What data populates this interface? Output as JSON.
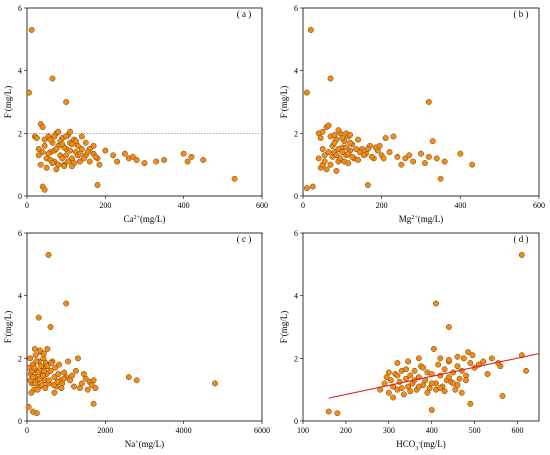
{
  "colors": {
    "point_fill": "#f28c16",
    "point_stroke": "#6b3a00",
    "fit_line": "#e01b1b",
    "ref_line": "#777777"
  },
  "chart_data": [
    {
      "panel": "(a)",
      "type": "scatter",
      "xlabel_parts": [
        "Ca",
        "2+",
        "(mg/L)"
      ],
      "ylabel_parts": [
        "F",
        "-",
        "(mg/L)"
      ],
      "xlim": [
        0,
        600
      ],
      "ylim": [
        0,
        6
      ],
      "xticks": [
        "0",
        "200",
        "400",
        "600"
      ],
      "yticks": [
        "0",
        "2",
        "4",
        "6"
      ],
      "reference_line_y": 2,
      "points": [
        [
          12,
          5.3
        ],
        [
          5,
          3.3
        ],
        [
          65,
          3.75
        ],
        [
          100,
          3.0
        ],
        [
          420,
          1.25
        ],
        [
          530,
          0.55
        ],
        [
          180,
          0.35
        ],
        [
          40,
          0.3
        ],
        [
          45,
          0.2
        ],
        [
          20,
          1.9
        ],
        [
          25,
          1.85
        ],
        [
          30,
          1.5
        ],
        [
          35,
          2.3
        ],
        [
          40,
          2.2
        ],
        [
          45,
          1.8
        ],
        [
          50,
          1.2
        ],
        [
          55,
          1.9
        ],
        [
          60,
          1.4
        ],
        [
          65,
          1.7
        ],
        [
          70,
          1.1
        ],
        [
          75,
          2.0
        ],
        [
          80,
          1.6
        ],
        [
          85,
          1.3
        ],
        [
          90,
          1.85
        ],
        [
          95,
          1.0
        ],
        [
          100,
          1.5
        ],
        [
          105,
          1.95
        ],
        [
          110,
          1.7
        ],
        [
          115,
          1.2
        ],
        [
          120,
          1.8
        ],
        [
          125,
          1.4
        ],
        [
          130,
          1.6
        ],
        [
          135,
          1.1
        ],
        [
          140,
          1.9
        ],
        [
          150,
          1.3
        ],
        [
          160,
          1.5
        ],
        [
          170,
          1.6
        ],
        [
          180,
          1.2
        ],
        [
          185,
          1.0
        ],
        [
          200,
          1.45
        ],
        [
          220,
          1.3
        ],
        [
          230,
          1.1
        ],
        [
          250,
          1.35
        ],
        [
          260,
          1.2
        ],
        [
          270,
          1.25
        ],
        [
          280,
          1.15
        ],
        [
          300,
          1.05
        ],
        [
          330,
          1.1
        ],
        [
          350,
          1.15
        ],
        [
          400,
          1.35
        ],
        [
          410,
          1.1
        ],
        [
          450,
          1.15
        ],
        [
          30,
          1.3
        ],
        [
          35,
          1.0
        ],
        [
          40,
          1.4
        ],
        [
          45,
          1.6
        ],
        [
          50,
          0.9
        ],
        [
          55,
          1.35
        ],
        [
          60,
          1.15
        ],
        [
          65,
          1.05
        ],
        [
          70,
          1.45
        ],
        [
          75,
          1.5
        ],
        [
          80,
          1.0
        ],
        [
          85,
          1.75
        ],
        [
          90,
          1.2
        ],
        [
          95,
          1.55
        ],
        [
          100,
          1.3
        ],
        [
          105,
          1.1
        ],
        [
          110,
          1.45
        ],
        [
          115,
          1.65
        ],
        [
          120,
          1.05
        ],
        [
          125,
          1.75
        ],
        [
          130,
          1.3
        ],
        [
          140,
          1.5
        ],
        [
          145,
          1.2
        ],
        [
          150,
          1.7
        ],
        [
          160,
          1.1
        ],
        [
          170,
          1.35
        ],
        [
          175,
          1.25
        ],
        [
          60,
          1.8
        ],
        [
          70,
          1.9
        ],
        [
          80,
          2.05
        ],
        [
          90,
          1.65
        ],
        [
          100,
          1.9
        ],
        [
          110,
          2.05
        ],
        [
          75,
          0.85
        ],
        [
          95,
          0.95
        ],
        [
          115,
          0.95
        ],
        [
          135,
          1.35
        ],
        [
          155,
          1.4
        ]
      ]
    },
    {
      "panel": "(b)",
      "type": "scatter",
      "xlabel_parts": [
        "Mg",
        "2+",
        "(mg/L)"
      ],
      "ylabel_parts": [
        "F",
        "-",
        "(mg/L)"
      ],
      "xlim": [
        0,
        600
      ],
      "ylim": [
        0,
        6
      ],
      "xticks": [
        "0",
        "200",
        "400",
        "600"
      ],
      "yticks": [
        "0",
        "2",
        "4",
        "6"
      ],
      "points": [
        [
          20,
          5.3
        ],
        [
          10,
          3.3
        ],
        [
          70,
          3.75
        ],
        [
          320,
          3.0
        ],
        [
          400,
          1.35
        ],
        [
          430,
          1.0
        ],
        [
          350,
          0.55
        ],
        [
          10,
          0.25
        ],
        [
          25,
          0.3
        ],
        [
          40,
          2.0
        ],
        [
          45,
          1.85
        ],
        [
          50,
          1.5
        ],
        [
          55,
          1.3
        ],
        [
          60,
          2.2
        ],
        [
          65,
          2.25
        ],
        [
          70,
          1.9
        ],
        [
          75,
          1.6
        ],
        [
          80,
          1.4
        ],
        [
          85,
          1.8
        ],
        [
          90,
          1.1
        ],
        [
          95,
          2.0
        ],
        [
          100,
          1.55
        ],
        [
          105,
          1.75
        ],
        [
          110,
          1.3
        ],
        [
          115,
          1.9
        ],
        [
          120,
          1.45
        ],
        [
          125,
          1.65
        ],
        [
          130,
          1.2
        ],
        [
          140,
          1.8
        ],
        [
          150,
          1.5
        ],
        [
          160,
          1.35
        ],
        [
          170,
          1.6
        ],
        [
          180,
          1.2
        ],
        [
          190,
          1.45
        ],
        [
          200,
          1.3
        ],
        [
          210,
          1.85
        ],
        [
          220,
          1.4
        ],
        [
          230,
          1.9
        ],
        [
          240,
          1.25
        ],
        [
          250,
          1.0
        ],
        [
          260,
          1.2
        ],
        [
          270,
          1.3
        ],
        [
          280,
          1.1
        ],
        [
          300,
          1.35
        ],
        [
          310,
          1.05
        ],
        [
          320,
          1.25
        ],
        [
          330,
          1.75
        ],
        [
          340,
          1.2
        ],
        [
          360,
          1.1
        ],
        [
          40,
          1.2
        ],
        [
          45,
          0.9
        ],
        [
          50,
          1.0
        ],
        [
          55,
          1.1
        ],
        [
          60,
          0.85
        ],
        [
          65,
          1.4
        ],
        [
          70,
          1.0
        ],
        [
          75,
          1.25
        ],
        [
          80,
          1.7
        ],
        [
          85,
          1.3
        ],
        [
          90,
          1.5
        ],
        [
          95,
          1.2
        ],
        [
          100,
          1.4
        ],
        [
          105,
          1.1
        ],
        [
          110,
          1.55
        ],
        [
          115,
          1.35
        ],
        [
          120,
          1.7
        ],
        [
          125,
          1.25
        ],
        [
          135,
          1.5
        ],
        [
          145,
          1.4
        ],
        [
          155,
          1.3
        ],
        [
          165,
          1.5
        ],
        [
          175,
          1.25
        ],
        [
          185,
          1.55
        ],
        [
          195,
          1.6
        ],
        [
          205,
          1.2
        ],
        [
          80,
          1.95
        ],
        [
          90,
          2.1
        ],
        [
          100,
          1.85
        ],
        [
          110,
          2.0
        ],
        [
          120,
          1.95
        ],
        [
          50,
          2.05
        ],
        [
          85,
          0.8
        ],
        [
          165,
          0.35
        ],
        [
          115,
          1.05
        ],
        [
          140,
          1.15
        ]
      ]
    },
    {
      "panel": "(c)",
      "type": "scatter",
      "xlabel_parts": [
        "Na",
        "+",
        "(mg/L)"
      ],
      "ylabel_parts": [
        "F",
        "-",
        "(mg/L)"
      ],
      "xlim": [
        0,
        6000
      ],
      "ylim": [
        0,
        6
      ],
      "xticks": [
        "0",
        "2000",
        "4000",
        "6000"
      ],
      "yticks": [
        "0",
        "2",
        "4",
        "6"
      ],
      "points": [
        [
          550,
          5.3
        ],
        [
          300,
          3.3
        ],
        [
          1000,
          3.75
        ],
        [
          600,
          3.0
        ],
        [
          2600,
          1.4
        ],
        [
          2800,
          1.3
        ],
        [
          4800,
          1.2
        ],
        [
          1700,
          0.55
        ],
        [
          150,
          0.3
        ],
        [
          250,
          0.25
        ],
        [
          80,
          2.0
        ],
        [
          100,
          1.5
        ],
        [
          120,
          1.2
        ],
        [
          150,
          1.8
        ],
        [
          180,
          1.0
        ],
        [
          200,
          1.4
        ],
        [
          220,
          2.1
        ],
        [
          250,
          1.6
        ],
        [
          280,
          1.3
        ],
        [
          300,
          1.9
        ],
        [
          320,
          1.1
        ],
        [
          350,
          2.2
        ],
        [
          380,
          1.5
        ],
        [
          400,
          1.7
        ],
        [
          420,
          2.0
        ],
        [
          450,
          1.3
        ],
        [
          480,
          1.85
        ],
        [
          500,
          1.5
        ],
        [
          550,
          1.2
        ],
        [
          600,
          1.6
        ],
        [
          650,
          1.9
        ],
        [
          700,
          1.4
        ],
        [
          750,
          1.1
        ],
        [
          800,
          1.5
        ],
        [
          850,
          1.3
        ],
        [
          900,
          1.2
        ],
        [
          950,
          1.55
        ],
        [
          1000,
          1.4
        ],
        [
          1100,
          1.3
        ],
        [
          1200,
          1.1
        ],
        [
          1300,
          2.0
        ],
        [
          1400,
          1.2
        ],
        [
          1500,
          1.35
        ],
        [
          1550,
          1.0
        ],
        [
          1600,
          1.25
        ],
        [
          1650,
          1.15
        ],
        [
          1700,
          1.3
        ],
        [
          60,
          1.7
        ],
        [
          90,
          1.3
        ],
        [
          110,
          0.9
        ],
        [
          130,
          1.6
        ],
        [
          160,
          1.4
        ],
        [
          190,
          1.7
        ],
        [
          210,
          1.2
        ],
        [
          240,
          1.9
        ],
        [
          270,
          1.0
        ],
        [
          290,
          1.55
        ],
        [
          330,
          1.35
        ],
        [
          360,
          1.75
        ],
        [
          390,
          1.15
        ],
        [
          410,
          1.45
        ],
        [
          440,
          1.6
        ],
        [
          470,
          1.05
        ],
        [
          520,
          1.75
        ],
        [
          560,
          1.3
        ],
        [
          620,
          1.85
        ],
        [
          680,
          1.15
        ],
        [
          720,
          1.7
        ],
        [
          780,
          1.25
        ],
        [
          820,
          1.8
        ],
        [
          880,
          1.05
        ],
        [
          940,
          1.35
        ],
        [
          1050,
          1.9
        ],
        [
          1150,
          1.45
        ],
        [
          1250,
          1.6
        ],
        [
          1350,
          1.05
        ],
        [
          1450,
          1.5
        ],
        [
          200,
          2.3
        ],
        [
          330,
          2.25
        ],
        [
          430,
          2.15
        ],
        [
          520,
          2.3
        ],
        [
          700,
          0.9
        ],
        [
          40,
          0.45
        ],
        [
          1750,
          1.05
        ]
      ]
    },
    {
      "panel": "(d)",
      "type": "scatter",
      "xlabel_parts": [
        "HCO",
        "3",
        "-",
        "(mg/L)"
      ],
      "ylabel_parts": [
        "F",
        "-",
        "(mg/L)"
      ],
      "xlim": [
        100,
        650
      ],
      "ylim": [
        0,
        6
      ],
      "xticks": [
        "100",
        "200",
        "300",
        "400",
        "500",
        "600"
      ],
      "yticks": [
        "0",
        "2",
        "4",
        "6"
      ],
      "fit_line": [
        [
          160,
          0.73
        ],
        [
          650,
          2.15
        ]
      ],
      "points": [
        [
          610,
          5.3
        ],
        [
          410,
          3.75
        ],
        [
          440,
          3.0
        ],
        [
          160,
          0.3
        ],
        [
          180,
          0.25
        ],
        [
          610,
          2.1
        ],
        [
          560,
          1.75
        ],
        [
          620,
          1.6
        ],
        [
          490,
          0.55
        ],
        [
          400,
          0.35
        ],
        [
          280,
          1.0
        ],
        [
          290,
          1.2
        ],
        [
          295,
          1.4
        ],
        [
          300,
          0.9
        ],
        [
          305,
          1.3
        ],
        [
          310,
          1.1
        ],
        [
          315,
          1.5
        ],
        [
          320,
          1.0
        ],
        [
          325,
          1.25
        ],
        [
          330,
          1.6
        ],
        [
          335,
          0.85
        ],
        [
          340,
          1.35
        ],
        [
          345,
          1.1
        ],
        [
          350,
          1.45
        ],
        [
          355,
          1.2
        ],
        [
          360,
          1.6
        ],
        [
          365,
          1.0
        ],
        [
          370,
          1.4
        ],
        [
          375,
          1.75
        ],
        [
          380,
          1.15
        ],
        [
          385,
          1.3
        ],
        [
          390,
          1.55
        ],
        [
          395,
          1.05
        ],
        [
          400,
          1.5
        ],
        [
          405,
          2.3
        ],
        [
          410,
          1.2
        ],
        [
          415,
          1.8
        ],
        [
          420,
          1.45
        ],
        [
          425,
          1.1
        ],
        [
          430,
          1.65
        ],
        [
          435,
          1.3
        ],
        [
          440,
          1.9
        ],
        [
          445,
          1.25
        ],
        [
          450,
          1.55
        ],
        [
          455,
          1.0
        ],
        [
          460,
          1.75
        ],
        [
          465,
          1.35
        ],
        [
          470,
          1.6
        ],
        [
          475,
          2.0
        ],
        [
          480,
          1.45
        ],
        [
          485,
          2.2
        ],
        [
          490,
          1.85
        ],
        [
          495,
          2.1
        ],
        [
          500,
          1.7
        ],
        [
          510,
          1.8
        ],
        [
          520,
          1.9
        ],
        [
          530,
          1.5
        ],
        [
          540,
          2.0
        ],
        [
          555,
          1.85
        ],
        [
          565,
          0.8
        ],
        [
          300,
          1.55
        ],
        [
          310,
          0.75
        ],
        [
          320,
          1.45
        ],
        [
          330,
          1.05
        ],
        [
          340,
          1.65
        ],
        [
          350,
          0.95
        ],
        [
          360,
          1.3
        ],
        [
          370,
          1.1
        ],
        [
          380,
          1.7
        ],
        [
          390,
          0.9
        ],
        [
          400,
          1.2
        ],
        [
          410,
          1.0
        ],
        [
          420,
          1.05
        ],
        [
          430,
          0.95
        ],
        [
          440,
          1.4
        ],
        [
          450,
          1.2
        ],
        [
          460,
          1.15
        ],
        [
          470,
          0.9
        ],
        [
          480,
          1.3
        ],
        [
          420,
          2.0
        ],
        [
          440,
          1.95
        ],
        [
          460,
          2.05
        ],
        [
          320,
          1.85
        ],
        [
          345,
          1.9
        ],
        [
          370,
          2.0
        ]
      ]
    }
  ]
}
